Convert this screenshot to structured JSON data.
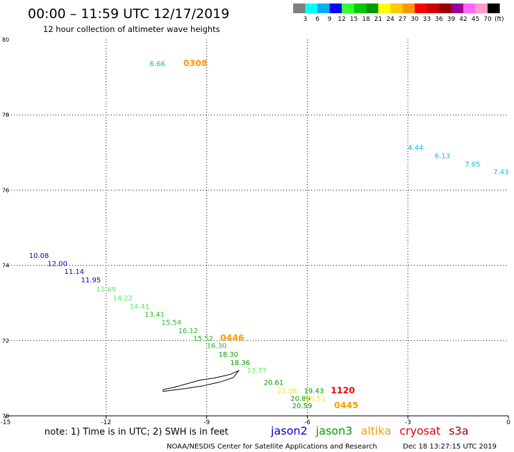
{
  "title": "00:00 – 11:59 UTC 12/17/2019",
  "subtitle": "12 hour collection of altimeter wave heights",
  "note": "note:  1) Time is in UTC;  2) SWH is in feet",
  "footer_left": "NOAA/NESDIS Center for Satellite Applications and Research",
  "footer_right": "Dec 18 13:27:15 UTC 2019",
  "color_scale": {
    "labels": [
      "3",
      "6",
      "9",
      "12",
      "15",
      "18",
      "21",
      "24",
      "27",
      "30",
      "33",
      "36",
      "39",
      "42",
      "45",
      "70"
    ],
    "unit": "(ft)",
    "colors": [
      "#808080",
      "#00ffff",
      "#00b0f0",
      "#0000ff",
      "#33ff33",
      "#00cc00",
      "#009900",
      "#ffff00",
      "#ffcc00",
      "#ff9900",
      "#ff0000",
      "#cc0000",
      "#990000",
      "#990099",
      "#ff66ff",
      "#ff99cc",
      "#000000"
    ]
  },
  "legend": [
    {
      "name": "jason2",
      "color": "#0000dd"
    },
    {
      "name": "jason3",
      "color": "#009900"
    },
    {
      "name": "altika",
      "color": "#ff9900"
    },
    {
      "name": "cryosat",
      "color": "#dd0000"
    },
    {
      "name": "s3a",
      "color": "#990000"
    }
  ],
  "chart_data": {
    "type": "scatter",
    "xlim": [
      -15,
      0
    ],
    "ylim": [
      70,
      80
    ],
    "x_ticks": [
      "-15",
      "-12",
      "-9",
      "-6",
      "-3",
      "0"
    ],
    "y_ticks": [
      "70",
      "72",
      "74",
      "76",
      "78",
      "80"
    ],
    "grid": true,
    "colors": {
      "c6": "#00b0f0",
      "c9": "#00c0e8",
      "c12": "#0000cc",
      "c15": "#55ee55",
      "c18": "#22bb22",
      "c21": "#009900",
      "c24": "#eeee00",
      "c27": "#ffcc00",
      "c30": "#ff9900",
      "c33": "#ee0000"
    },
    "points": [
      {
        "x": -10.7,
        "y": 79.3,
        "label": "6.66",
        "color": "c6"
      },
      {
        "x": -3.0,
        "y": 77.07,
        "label": "4.44",
        "color": "c9"
      },
      {
        "x": -2.2,
        "y": 76.85,
        "label": "6.13",
        "color": "c9"
      },
      {
        "x": -1.3,
        "y": 76.63,
        "label": "7.05",
        "color": "c9"
      },
      {
        "x": -0.45,
        "y": 76.42,
        "label": "7.43",
        "color": "c9"
      },
      {
        "x": -14.3,
        "y": 74.2,
        "label": "10.08",
        "color": "c12"
      },
      {
        "x": -13.75,
        "y": 73.98,
        "label": "12.00",
        "color": "c12"
      },
      {
        "x": -13.25,
        "y": 73.77,
        "label": "11.14",
        "color": "c12"
      },
      {
        "x": -12.75,
        "y": 73.55,
        "label": "11.95",
        "color": "c12"
      },
      {
        "x": -12.3,
        "y": 73.3,
        "label": "12.69",
        "color": "c15"
      },
      {
        "x": -11.8,
        "y": 73.07,
        "label": "14.22",
        "color": "c15"
      },
      {
        "x": -11.3,
        "y": 72.85,
        "label": "14.41",
        "color": "c15"
      },
      {
        "x": -10.85,
        "y": 72.63,
        "label": "13.41",
        "color": "c18"
      },
      {
        "x": -10.35,
        "y": 72.42,
        "label": "15.54",
        "color": "c18"
      },
      {
        "x": -9.85,
        "y": 72.2,
        "label": "16.12",
        "color": "c18"
      },
      {
        "x": -9.4,
        "y": 72.0,
        "label": "15.52",
        "color": "c18"
      },
      {
        "x": -9.0,
        "y": 71.8,
        "label": "16.30",
        "color": "c18"
      },
      {
        "x": -8.65,
        "y": 71.57,
        "label": "18.30",
        "color": "c21"
      },
      {
        "x": -8.3,
        "y": 71.35,
        "label": "18.36",
        "color": "c21"
      },
      {
        "x": -7.8,
        "y": 71.15,
        "label": "13.77",
        "color": "c15"
      },
      {
        "x": -7.3,
        "y": 70.82,
        "label": "20.61",
        "color": "c21"
      },
      {
        "x": -6.9,
        "y": 70.6,
        "label": "21.06",
        "color": "c24"
      },
      {
        "x": -6.1,
        "y": 70.6,
        "label": "19.43",
        "color": "c21"
      },
      {
        "x": -6.5,
        "y": 70.4,
        "label": "20.89",
        "color": "c21"
      },
      {
        "x": -6.05,
        "y": 70.4,
        "label": "20.51",
        "color": "c24"
      },
      {
        "x": -6.45,
        "y": 70.2,
        "label": "20.59",
        "color": "c21"
      }
    ],
    "time_labels": [
      {
        "x": -9.7,
        "y": 79.3,
        "label": "0308",
        "color": "c30"
      },
      {
        "x": -8.6,
        "y": 72.0,
        "label": "0446",
        "color": "c30"
      },
      {
        "x": -5.3,
        "y": 70.6,
        "label": "1120",
        "color": "c33"
      },
      {
        "x": -5.2,
        "y": 70.2,
        "label": "0445",
        "color": "c30"
      }
    ],
    "coastline": [
      [
        -10.3,
        70.7
      ],
      [
        -10.0,
        70.75
      ],
      [
        -9.6,
        70.85
      ],
      [
        -9.2,
        70.95
      ],
      [
        -8.8,
        71.0
      ],
      [
        -8.3,
        71.1
      ],
      [
        -8.05,
        71.2
      ],
      [
        -8.2,
        71.02
      ],
      [
        -8.6,
        70.9
      ],
      [
        -9.1,
        70.8
      ],
      [
        -9.6,
        70.73
      ],
      [
        -10.3,
        70.65
      ],
      [
        -10.3,
        70.7
      ]
    ]
  }
}
